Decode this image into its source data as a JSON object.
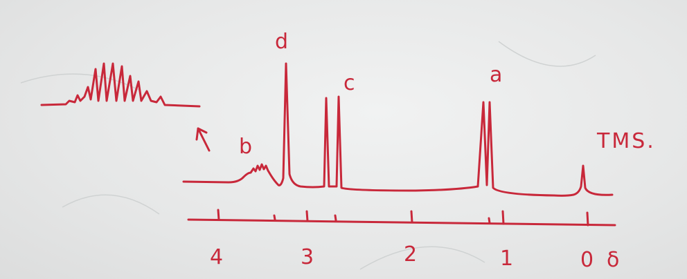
{
  "peak_labels": {
    "d": "d",
    "c": "c",
    "b": "b",
    "a": "a",
    "tms": "TMS."
  },
  "axis": {
    "ticks": [
      "4",
      "3",
      "2",
      "1",
      "0"
    ],
    "unit": "δ"
  },
  "colors": {
    "ink": "#c8283a",
    "board": "#e9eaea"
  }
}
